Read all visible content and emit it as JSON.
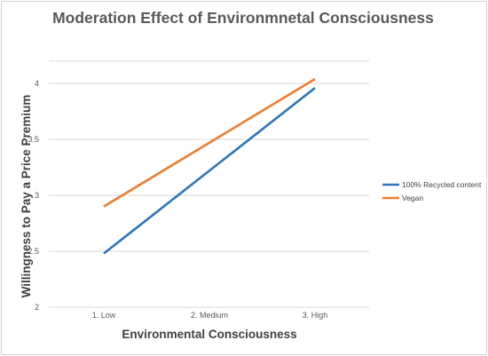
{
  "chart_data": {
    "type": "line",
    "title": "Moderation Effect of Environmnetal Consciousness",
    "xlabel": "Environmental Consciousness",
    "ylabel": "Willingness to Pay a Price Premium",
    "categories": [
      "1. Low",
      "2. Medium",
      "3. High"
    ],
    "ylim": [
      2,
      4.2
    ],
    "yticks": [
      "2",
      "2.5",
      "3",
      "3.5",
      "4"
    ],
    "grid": true,
    "legend_position": "right",
    "series": [
      {
        "name": "100% Recycled content",
        "color": "#2e75b6",
        "values": [
          2.48,
          3.22,
          3.96
        ]
      },
      {
        "name": "Vegan",
        "color": "#ed7d31",
        "values": [
          2.9,
          3.47,
          4.04
        ]
      }
    ]
  }
}
